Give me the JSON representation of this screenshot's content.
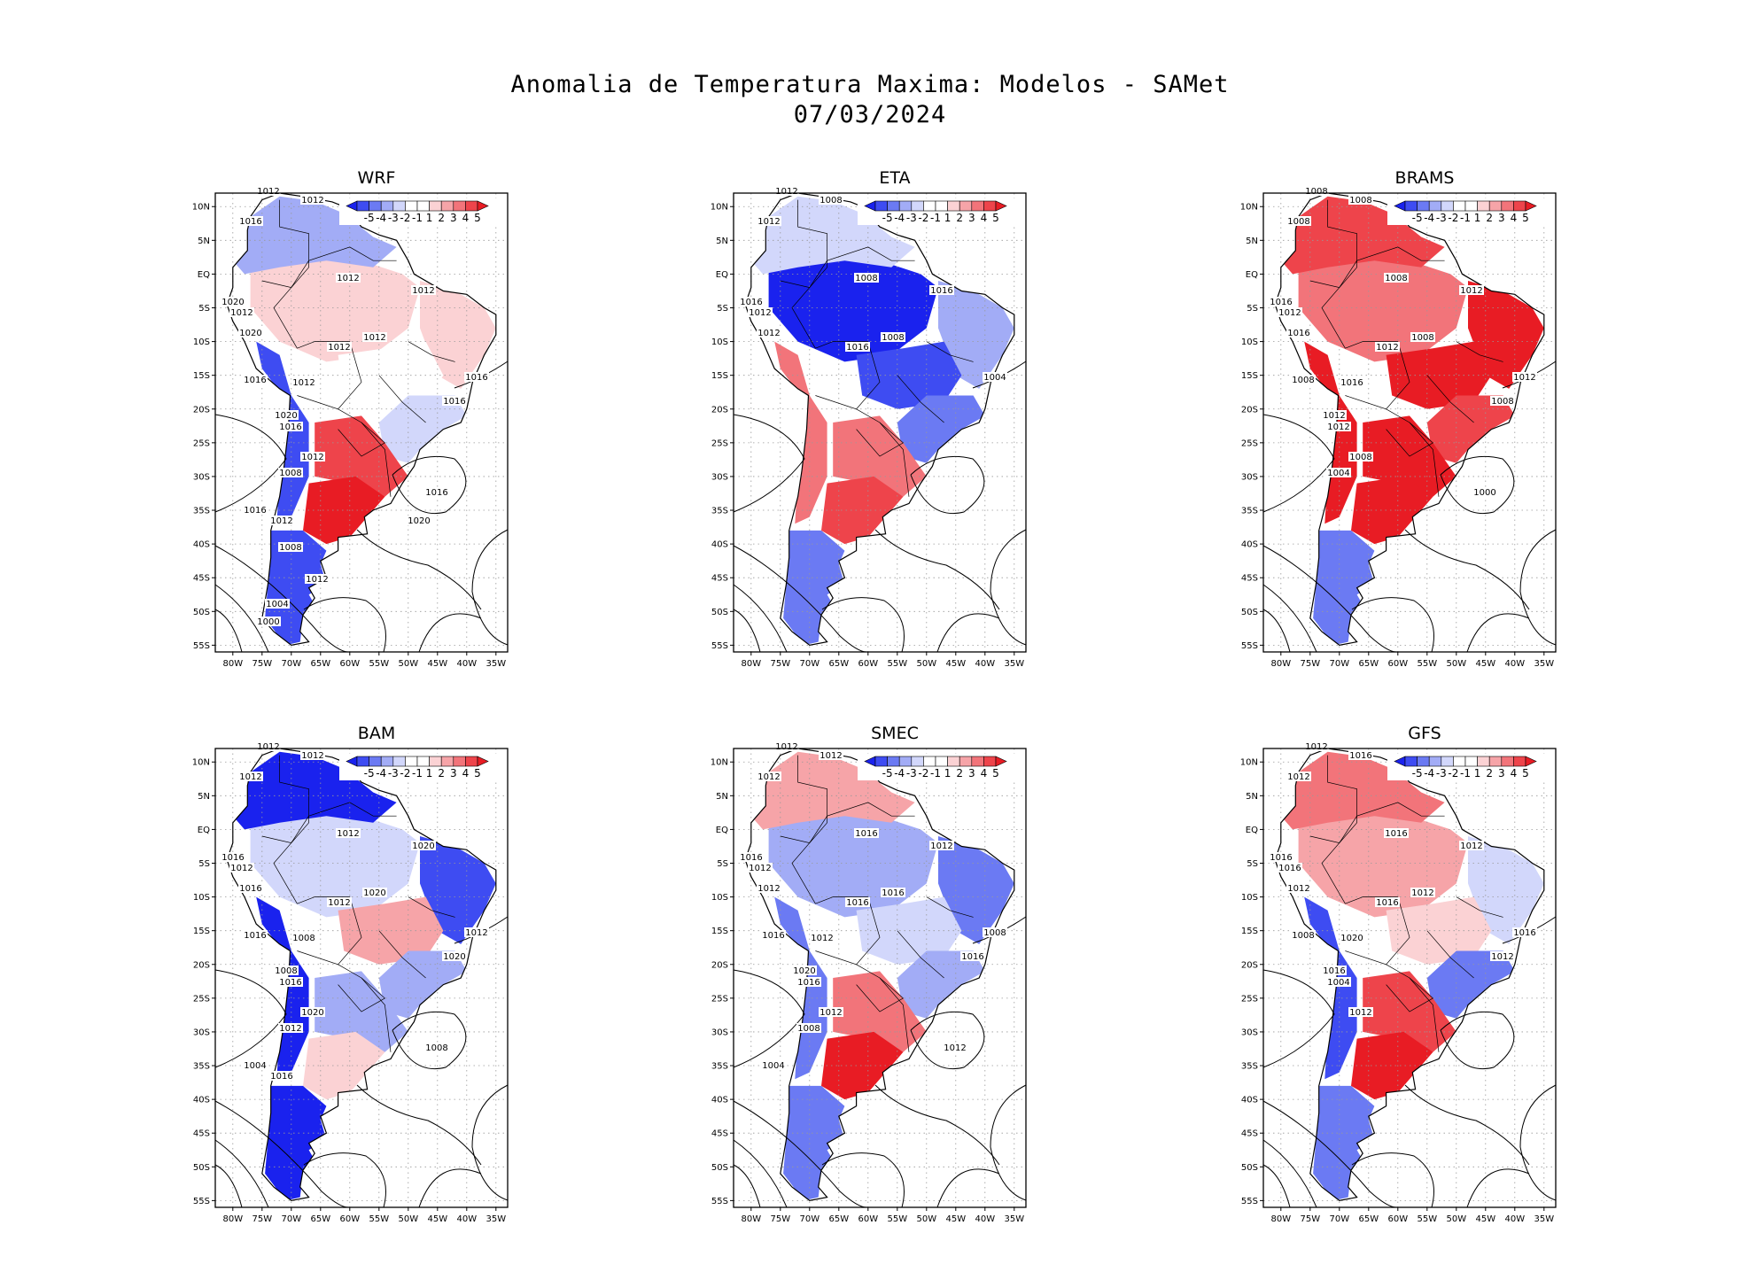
{
  "title": {
    "line1": "Anomalia de Temperatura Maxima: Modelos - SAMet",
    "line2": "07/03/2024"
  },
  "colors": {
    "neg5": "#1a22ee",
    "neg4": "#3e4cf2",
    "neg3": "#6b7af3",
    "neg2": "#a2acf6",
    "neg1": "#d2d7fb",
    "zero": "#ffffff",
    "pos1": "#fbd2d4",
    "pos2": "#f6a4a8",
    "pos3": "#f2747a",
    "pos4": "#ee444b",
    "pos5": "#e81c24",
    "land_border": "#000000",
    "grid": "#999999"
  },
  "colorbar": {
    "labels": [
      "-5",
      "-4",
      "-3",
      "-2",
      "-1",
      "1",
      "2",
      "3",
      "4",
      "5"
    ]
  },
  "axes": {
    "lat_labels": [
      "10N",
      "5N",
      "EQ",
      "5S",
      "10S",
      "15S",
      "20S",
      "25S",
      "30S",
      "35S",
      "40S",
      "45S",
      "50S",
      "55S"
    ],
    "lon_labels": [
      "80W",
      "75W",
      "70W",
      "65W",
      "60W",
      "55W",
      "50W",
      "45W",
      "40W",
      "35W"
    ]
  },
  "panels": [
    {
      "name": "WRF",
      "anomaly": {
        "north_andes": -2,
        "amazon": 1,
        "northeast": 1,
        "central": 0,
        "southeast": -1,
        "south": 4,
        "pampa": 5,
        "andes_central": -4,
        "patagonia": -4
      },
      "isobars": [
        "1012",
        "1012",
        "1016",
        "1012",
        "1012",
        "1020",
        "1012",
        "1012",
        "1012",
        "1020",
        "1016",
        "1012",
        "1016",
        "1020",
        "1016",
        "1016",
        "1012",
        "1008",
        "1016",
        "1016",
        "1012",
        "1020",
        "1008",
        "1012",
        "1004",
        "1000"
      ]
    },
    {
      "name": "ETA",
      "anomaly": {
        "north_andes": -1,
        "amazon": -5,
        "northeast": -2,
        "central": -4,
        "southeast": -3,
        "south": 3,
        "pampa": 4,
        "andes_central": 3,
        "patagonia": -3
      },
      "isobars": [
        "1012",
        "1008",
        "1012",
        "1008",
        "1016",
        "1016",
        "1012",
        "1008",
        "1016",
        "1012",
        "1004"
      ]
    },
    {
      "name": "BRAMS",
      "anomaly": {
        "north_andes": 4,
        "amazon": 3,
        "northeast": 5,
        "central": 5,
        "southeast": 4,
        "south": 5,
        "pampa": 5,
        "andes_central": 5,
        "patagonia": -3
      },
      "isobars": [
        "1008",
        "1008",
        "1008",
        "1008",
        "1012",
        "1016",
        "1012",
        "1008",
        "1012",
        "1016",
        "1012",
        "1016",
        "1008",
        "1012",
        "1008",
        "1012",
        "1008",
        "1004",
        "1000"
      ]
    },
    {
      "name": "BAM",
      "anomaly": {
        "north_andes": -5,
        "amazon": -1,
        "northeast": -4,
        "central": 2,
        "southeast": -2,
        "south": -2,
        "pampa": 1,
        "andes_central": -5,
        "patagonia": -5
      },
      "isobars": [
        "1012",
        "1012",
        "1012",
        "1012",
        "1020",
        "1016",
        "1012",
        "1020",
        "1012",
        "1016",
        "1012",
        "1008",
        "1016",
        "1008",
        "1020",
        "1016",
        "1020",
        "1012",
        "1008",
        "1004",
        "1016"
      ]
    },
    {
      "name": "SMEC",
      "anomaly": {
        "north_andes": 2,
        "amazon": -2,
        "northeast": -3,
        "central": -1,
        "southeast": -2,
        "south": 3,
        "pampa": 5,
        "andes_central": -3,
        "patagonia": -3
      },
      "isobars": [
        "1012",
        "1012",
        "1012",
        "1016",
        "1012",
        "1016",
        "1012",
        "1016",
        "1016",
        "1012",
        "1008",
        "1012",
        "1016",
        "1020",
        "1016",
        "1016",
        "1012",
        "1008",
        "1012",
        "1004"
      ]
    },
    {
      "name": "GFS",
      "anomaly": {
        "north_andes": 3,
        "amazon": 2,
        "northeast": -1,
        "central": 1,
        "southeast": -3,
        "south": 4,
        "pampa": 5,
        "andes_central": -4,
        "patagonia": -3
      },
      "isobars": [
        "1012",
        "1016",
        "1012",
        "1016",
        "1012",
        "1016",
        "1016",
        "1012",
        "1016",
        "1012",
        "1016",
        "1020",
        "1008",
        "1016",
        "1012",
        "1004",
        "1012"
      ]
    }
  ]
}
